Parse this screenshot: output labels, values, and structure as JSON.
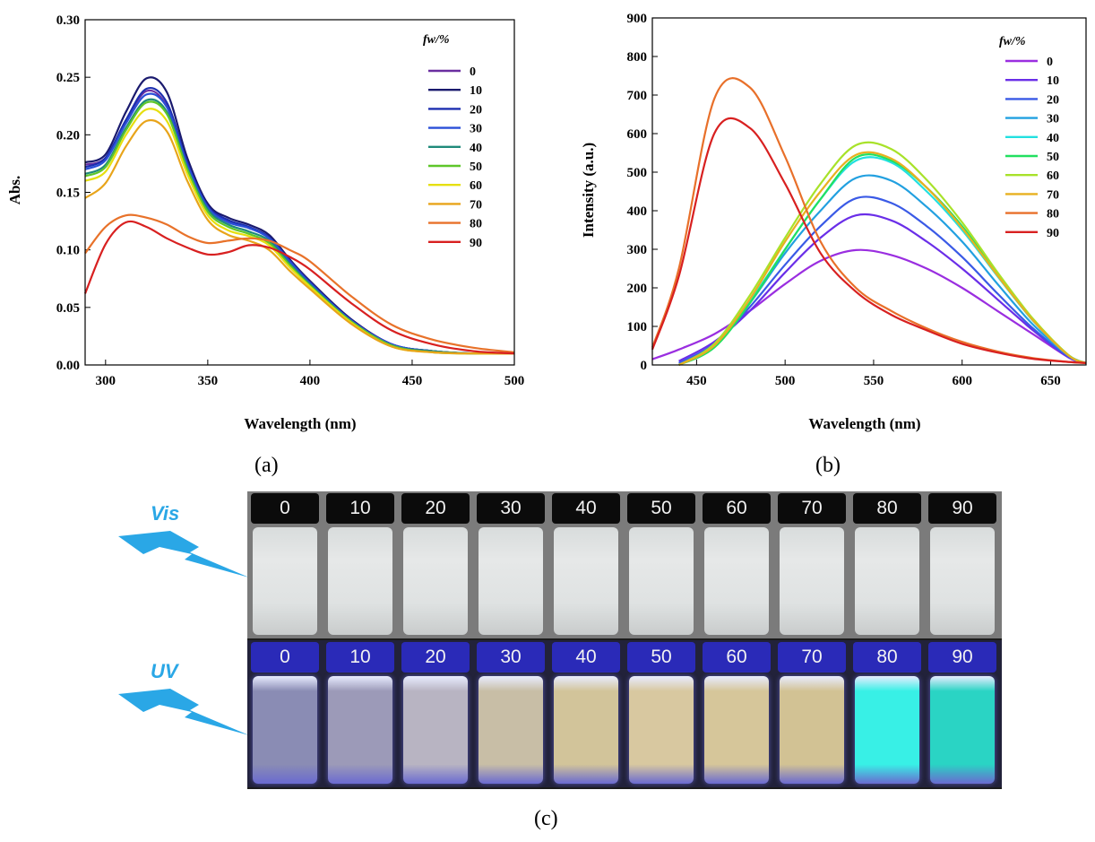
{
  "panel_labels": {
    "a": "(a)",
    "b": "(b)",
    "c": "(c)"
  },
  "colors": {
    "a": [
      "#6a2ea0",
      "#1a1a6e",
      "#1d2fb0",
      "#2a4fd8",
      "#1f8a7a",
      "#5ec62a",
      "#e6df10",
      "#e8a41a",
      "#e8722a",
      "#d82020"
    ],
    "b": [
      "#9a2ee0",
      "#6a2ee8",
      "#3a5ae6",
      "#22a0e0",
      "#22e0e0",
      "#22e060",
      "#a8e22a",
      "#e8b020",
      "#e8702a",
      "#d82020"
    ]
  },
  "chart_data": [
    {
      "type": "line",
      "id": "a",
      "xlabel": "Wavelength (nm)",
      "ylabel": "Abs.",
      "xlim": [
        290,
        500
      ],
      "ylim": [
        0,
        0.3
      ],
      "x_ticks": [
        300,
        350,
        400,
        450,
        500
      ],
      "y_ticks": [
        "0.00",
        "0.05",
        "0.10",
        "0.15",
        "0.20",
        "0.25",
        "0.30"
      ],
      "y_tick_values": [
        0,
        0.05,
        0.1,
        0.15,
        0.2,
        0.25,
        0.3
      ],
      "legend_title": "fw/%",
      "legend_position": "top-right",
      "x": [
        290,
        300,
        310,
        320,
        330,
        340,
        350,
        360,
        370,
        380,
        390,
        400,
        420,
        440,
        460,
        480,
        500
      ],
      "series": [
        {
          "name": "0",
          "values": [
            0.174,
            0.18,
            0.212,
            0.238,
            0.225,
            0.175,
            0.14,
            0.125,
            0.12,
            0.11,
            0.09,
            0.072,
            0.04,
            0.018,
            0.012,
            0.01,
            0.01
          ]
        },
        {
          "name": "10",
          "values": [
            0.176,
            0.183,
            0.22,
            0.249,
            0.237,
            0.18,
            0.14,
            0.128,
            0.122,
            0.113,
            0.092,
            0.073,
            0.04,
            0.018,
            0.012,
            0.01,
            0.01
          ]
        },
        {
          "name": "20",
          "values": [
            0.172,
            0.18,
            0.213,
            0.24,
            0.228,
            0.176,
            0.138,
            0.126,
            0.12,
            0.111,
            0.091,
            0.072,
            0.039,
            0.018,
            0.012,
            0.01,
            0.01
          ]
        },
        {
          "name": "30",
          "values": [
            0.17,
            0.178,
            0.21,
            0.235,
            0.224,
            0.174,
            0.137,
            0.124,
            0.119,
            0.11,
            0.09,
            0.071,
            0.039,
            0.018,
            0.012,
            0.01,
            0.01
          ]
        },
        {
          "name": "40",
          "values": [
            0.166,
            0.174,
            0.206,
            0.23,
            0.22,
            0.171,
            0.135,
            0.122,
            0.116,
            0.108,
            0.088,
            0.07,
            0.038,
            0.017,
            0.012,
            0.01,
            0.01
          ]
        },
        {
          "name": "50",
          "values": [
            0.164,
            0.172,
            0.204,
            0.228,
            0.218,
            0.17,
            0.133,
            0.12,
            0.114,
            0.106,
            0.087,
            0.069,
            0.038,
            0.017,
            0.011,
            0.01,
            0.01
          ]
        },
        {
          "name": "60",
          "values": [
            0.16,
            0.168,
            0.2,
            0.222,
            0.212,
            0.166,
            0.13,
            0.117,
            0.112,
            0.104,
            0.085,
            0.068,
            0.037,
            0.016,
            0.011,
            0.01,
            0.01
          ]
        },
        {
          "name": "70",
          "values": [
            0.145,
            0.158,
            0.19,
            0.212,
            0.203,
            0.16,
            0.126,
            0.113,
            0.108,
            0.1,
            0.082,
            0.066,
            0.036,
            0.016,
            0.011,
            0.01,
            0.01
          ]
        },
        {
          "name": "80",
          "values": [
            0.097,
            0.12,
            0.13,
            0.128,
            0.122,
            0.112,
            0.106,
            0.108,
            0.11,
            0.108,
            0.1,
            0.09,
            0.06,
            0.035,
            0.022,
            0.015,
            0.011
          ]
        },
        {
          "name": "90",
          "values": [
            0.062,
            0.105,
            0.124,
            0.12,
            0.11,
            0.102,
            0.096,
            0.098,
            0.104,
            0.102,
            0.094,
            0.083,
            0.054,
            0.03,
            0.018,
            0.012,
            0.01
          ]
        }
      ]
    },
    {
      "type": "line",
      "id": "b",
      "xlabel": "Wavelength (nm)",
      "ylabel": "Intensity (a.u.)",
      "xlim": [
        425,
        670
      ],
      "ylim": [
        0,
        900
      ],
      "x_ticks": [
        450,
        500,
        550,
        600,
        650
      ],
      "y_ticks": [
        0,
        100,
        200,
        300,
        400,
        500,
        600,
        700,
        800,
        900
      ],
      "legend_title": "fw/%",
      "legend_position": "top-right",
      "x": [
        425,
        440,
        460,
        480,
        500,
        520,
        540,
        560,
        580,
        600,
        620,
        640,
        660,
        670
      ],
      "series": [
        {
          "name": "0",
          "values": [
            15,
            40,
            80,
            140,
            210,
            270,
            298,
            285,
            250,
            200,
            140,
            80,
            20,
            5
          ]
        },
        {
          "name": "10",
          "values": [
            null,
            10,
            60,
            140,
            240,
            330,
            388,
            375,
            320,
            250,
            170,
            90,
            20,
            5
          ]
        },
        {
          "name": "20",
          "values": [
            null,
            5,
            55,
            150,
            260,
            360,
            432,
            420,
            360,
            280,
            185,
            95,
            22,
            5
          ]
        },
        {
          "name": "30",
          "values": [
            null,
            0,
            50,
            160,
            290,
            400,
            485,
            478,
            410,
            320,
            210,
            105,
            25,
            5
          ]
        },
        {
          "name": "40",
          "values": [
            null,
            0,
            50,
            165,
            300,
            430,
            530,
            525,
            450,
            350,
            230,
            115,
            25,
            5
          ]
        },
        {
          "name": "50",
          "values": [
            null,
            0,
            45,
            160,
            300,
            430,
            538,
            530,
            460,
            360,
            235,
            118,
            26,
            5
          ]
        },
        {
          "name": "60",
          "values": [
            null,
            0,
            55,
            180,
            330,
            470,
            570,
            560,
            480,
            370,
            240,
            120,
            26,
            5
          ]
        },
        {
          "name": "70",
          "values": [
            null,
            0,
            50,
            170,
            320,
            450,
            545,
            535,
            460,
            355,
            232,
            116,
            25,
            5
          ]
        },
        {
          "name": "80",
          "values": [
            45,
            250,
            690,
            720,
            540,
            320,
            200,
            140,
            95,
            60,
            35,
            18,
            8,
            5
          ]
        },
        {
          "name": "90",
          "values": [
            40,
            230,
            600,
            615,
            470,
            290,
            190,
            130,
            90,
            55,
            32,
            16,
            8,
            5
          ]
        }
      ]
    }
  ],
  "photo": {
    "vis_label": "Vis",
    "uv_label": "UV",
    "caps": [
      "0",
      "10",
      "20",
      "30",
      "40",
      "50",
      "60",
      "70",
      "80",
      "90"
    ],
    "uv_colors": [
      "#8a8cb4",
      "#9c9ab8",
      "#b8b4c2",
      "#c8bea6",
      "#d2c49a",
      "#d8c8a0",
      "#d6c69a",
      "#d2c294",
      "#38f0e6",
      "#2ad4c4"
    ]
  }
}
